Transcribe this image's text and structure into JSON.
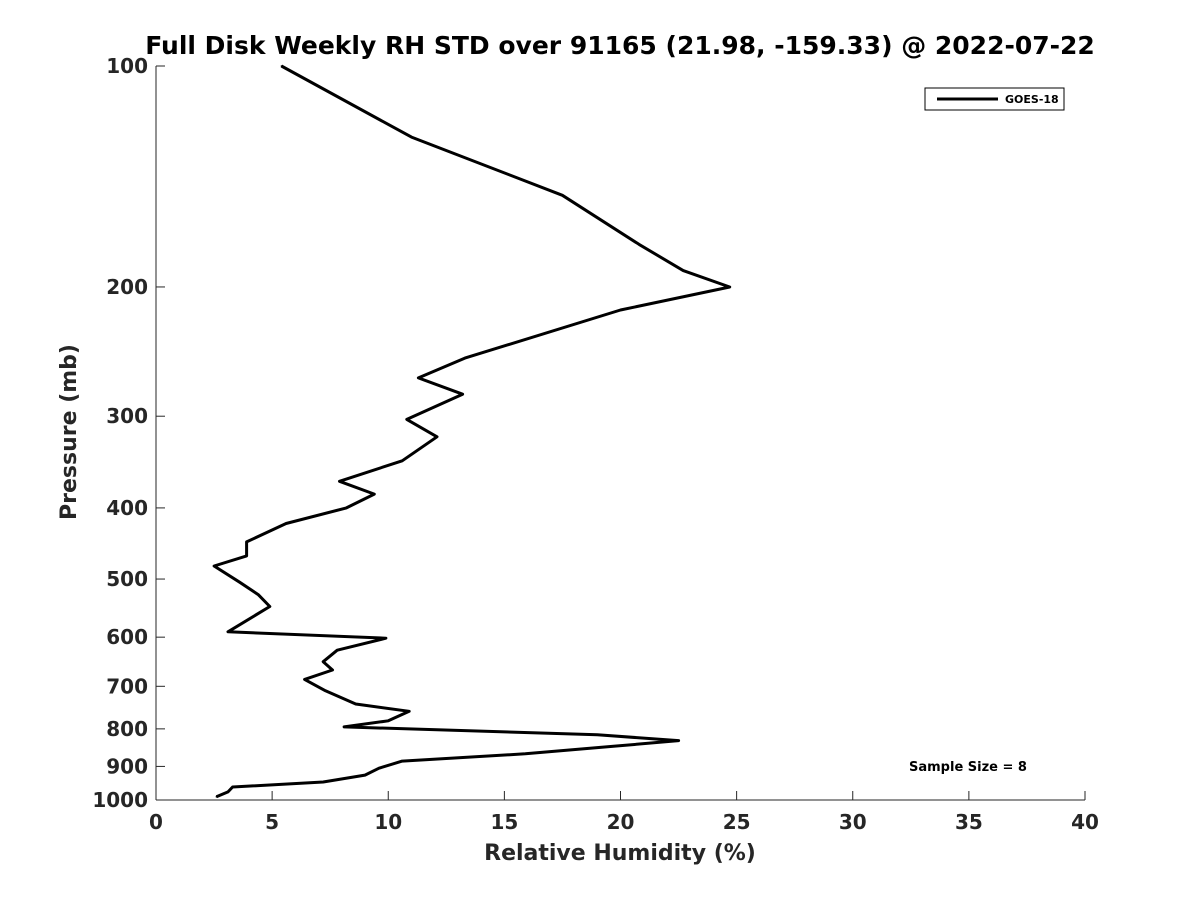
{
  "chart_data": {
    "type": "line",
    "title": "Full Disk Weekly RH STD over 91165 (21.98, -159.33) @ 2022-07-22",
    "xlabel": "Relative Humidity (%)",
    "ylabel": "Pressure (mb)",
    "xlim": [
      0,
      40
    ],
    "ylim": [
      100,
      1000
    ],
    "y_scale": "log",
    "y_reversed": true,
    "grid": false,
    "legend_position": "top-right",
    "x_ticks": [
      "0",
      "5",
      "10",
      "15",
      "20",
      "25",
      "30",
      "35",
      "40"
    ],
    "y_ticks": [
      "100",
      "200",
      "300",
      "400",
      "500",
      "600",
      "700",
      "800",
      "900",
      "1000"
    ],
    "annotation": "Sample Size = 8",
    "series": [
      {
        "name": "GOES-18",
        "color": "#000000",
        "points": [
          [
            5.4,
            100
          ],
          [
            11.0,
            125
          ],
          [
            17.5,
            150
          ],
          [
            20.8,
            175
          ],
          [
            22.7,
            190
          ],
          [
            24.7,
            200
          ],
          [
            20.0,
            215
          ],
          [
            13.3,
            250
          ],
          [
            11.3,
            266
          ],
          [
            13.2,
            280
          ],
          [
            10.8,
            303
          ],
          [
            12.1,
            320
          ],
          [
            10.6,
            345
          ],
          [
            7.9,
            368
          ],
          [
            9.4,
            383
          ],
          [
            8.2,
            400
          ],
          [
            5.6,
            420
          ],
          [
            3.9,
            445
          ],
          [
            3.9,
            465
          ],
          [
            2.5,
            480
          ],
          [
            3.6,
            505
          ],
          [
            4.4,
            525
          ],
          [
            4.9,
            545
          ],
          [
            3.1,
            590
          ],
          [
            9.9,
            602
          ],
          [
            7.8,
            625
          ],
          [
            7.2,
            648
          ],
          [
            7.6,
            665
          ],
          [
            6.4,
            685
          ],
          [
            7.3,
            710
          ],
          [
            8.6,
            740
          ],
          [
            10.9,
            757
          ],
          [
            10.0,
            780
          ],
          [
            8.1,
            795
          ],
          [
            19.0,
            815
          ],
          [
            22.5,
            830
          ],
          [
            19.7,
            845
          ],
          [
            15.9,
            865
          ],
          [
            10.6,
            885
          ],
          [
            9.6,
            905
          ],
          [
            9.0,
            925
          ],
          [
            7.2,
            945
          ],
          [
            3.3,
            960
          ],
          [
            3.1,
            975
          ],
          [
            2.6,
            990
          ]
        ]
      }
    ]
  }
}
